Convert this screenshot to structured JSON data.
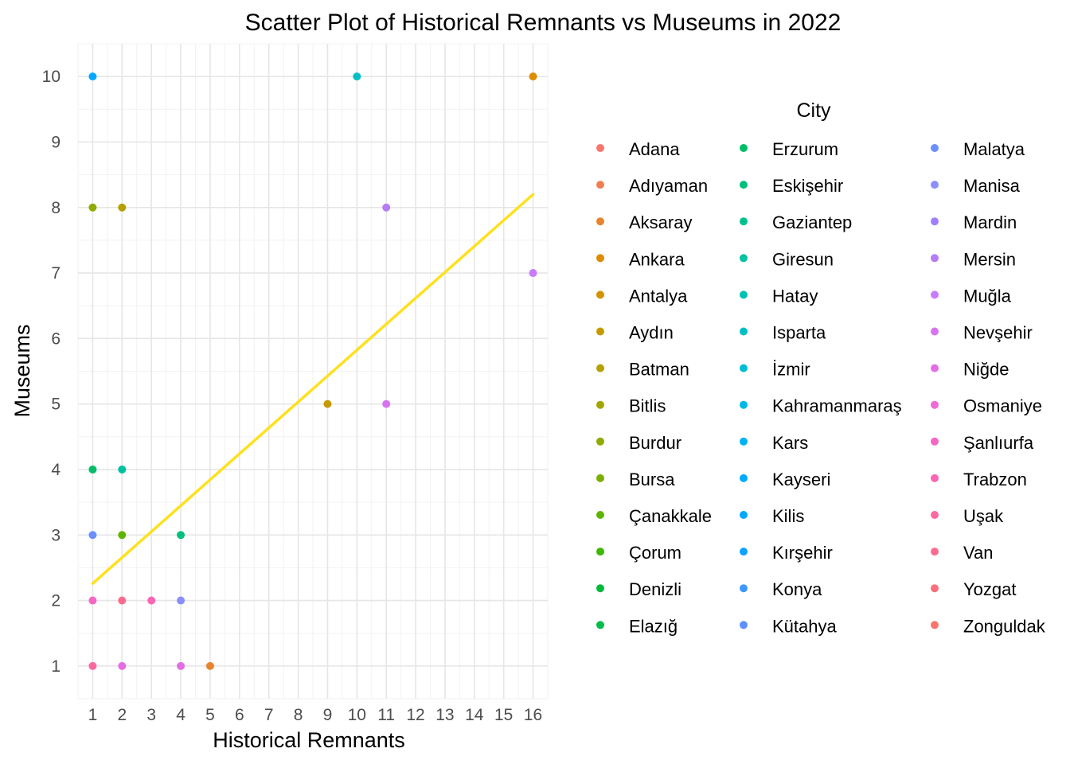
{
  "chart_data": {
    "type": "scatter",
    "title": "Scatter Plot of Historical Remnants vs Museums in 2022",
    "xlabel": "Historical Remnants",
    "ylabel": "Museums",
    "xlim": [
      0.5,
      16.5
    ],
    "ylim": [
      0.5,
      10.5
    ],
    "x_ticks": [
      1,
      2,
      3,
      4,
      5,
      6,
      7,
      8,
      9,
      10,
      11,
      12,
      13,
      14,
      15,
      16
    ],
    "y_ticks": [
      1,
      2,
      3,
      4,
      5,
      6,
      7,
      8,
      9,
      10
    ],
    "grid": true,
    "legend": {
      "title": "City",
      "placement": "right",
      "columns": 3
    },
    "trend_line": {
      "type": "linear fit",
      "color": "#FFE01E",
      "x": [
        1,
        16
      ],
      "y": [
        2.26,
        8.2
      ]
    },
    "series": [
      {
        "name": "Adana",
        "color": "#F8766D",
        "points": []
      },
      {
        "name": "Adıyaman",
        "color": "#F17D53",
        "points": []
      },
      {
        "name": "Aksaray",
        "color": "#E7842E",
        "points": [
          [
            5,
            1
          ]
        ]
      },
      {
        "name": "Ankara",
        "color": "#DE8C00",
        "points": [
          [
            16,
            10
          ]
        ]
      },
      {
        "name": "Antalya",
        "color": "#D39200",
        "points": []
      },
      {
        "name": "Aydın",
        "color": "#C59900",
        "points": [
          [
            9,
            5
          ]
        ]
      },
      {
        "name": "Batman",
        "color": "#B69F00",
        "points": [
          [
            2,
            8
          ]
        ]
      },
      {
        "name": "Bitlis",
        "color": "#A3A500",
        "points": []
      },
      {
        "name": "Burdur",
        "color": "#8EAB00",
        "points": [
          [
            1,
            8
          ]
        ]
      },
      {
        "name": "Bursa",
        "color": "#7AAF00",
        "points": []
      },
      {
        "name": "Çanakkale",
        "color": "#5FB400",
        "points": [
          [
            2,
            3
          ]
        ]
      },
      {
        "name": "Çorum",
        "color": "#3EB700",
        "points": []
      },
      {
        "name": "Denizli",
        "color": "#00BA38",
        "points": []
      },
      {
        "name": "Elazığ",
        "color": "#00BC4E",
        "points": []
      },
      {
        "name": "Erzurum",
        "color": "#00BE67",
        "points": [
          [
            1,
            4
          ]
        ]
      },
      {
        "name": "Eskişehir",
        "color": "#00C07B",
        "points": [
          [
            4,
            3
          ]
        ]
      },
      {
        "name": "Gaziantep",
        "color": "#00C18E",
        "points": []
      },
      {
        "name": "Giresun",
        "color": "#00C1A2",
        "points": [
          [
            2,
            4
          ]
        ]
      },
      {
        "name": "Hatay",
        "color": "#00C0B4",
        "points": []
      },
      {
        "name": "Isparta",
        "color": "#00BFC4",
        "points": [
          [
            10,
            10
          ]
        ]
      },
      {
        "name": "İzmir",
        "color": "#00BCD4",
        "points": []
      },
      {
        "name": "Kahramanmaraş",
        "color": "#00B8E5",
        "points": []
      },
      {
        "name": "Kars",
        "color": "#00B2F2",
        "points": []
      },
      {
        "name": "Kayseri",
        "color": "#00ABFD",
        "points": []
      },
      {
        "name": "Kilis",
        "color": "#00A9FF",
        "points": [
          [
            1,
            10
          ]
        ]
      },
      {
        "name": "Kırşehir",
        "color": "#0FA2FF",
        "points": []
      },
      {
        "name": "Konya",
        "color": "#3D99FF",
        "points": []
      },
      {
        "name": "Kütahya",
        "color": "#5E90FF",
        "points": []
      },
      {
        "name": "Malatya",
        "color": "#6C8FFF",
        "points": [
          [
            1,
            3
          ]
        ]
      },
      {
        "name": "Manisa",
        "color": "#8B8EFF",
        "points": [
          [
            4,
            2
          ]
        ]
      },
      {
        "name": "Mardin",
        "color": "#A180FF",
        "points": []
      },
      {
        "name": "Mersin",
        "color": "#B57CF5",
        "points": [
          [
            11,
            8
          ]
        ]
      },
      {
        "name": "Muğla",
        "color": "#C77CFF",
        "points": [
          [
            16,
            7
          ]
        ]
      },
      {
        "name": "Nevşehir",
        "color": "#D773F0",
        "points": [
          [
            11,
            5
          ]
        ]
      },
      {
        "name": "Niğde",
        "color": "#E36EE4",
        "points": [
          [
            2,
            1
          ],
          [
            4,
            1
          ]
        ]
      },
      {
        "name": "Osmaniye",
        "color": "#EE6BD6",
        "points": []
      },
      {
        "name": "Şanlıurfa",
        "color": "#F567C5",
        "points": [
          [
            1,
            2
          ]
        ]
      },
      {
        "name": "Trabzon",
        "color": "#FA66B3",
        "points": [
          [
            3,
            2
          ]
        ]
      },
      {
        "name": "Uşak",
        "color": "#FD68A0",
        "points": [
          [
            1,
            1
          ]
        ]
      },
      {
        "name": "Van",
        "color": "#FD6C8E",
        "points": [
          [
            2,
            2
          ]
        ]
      },
      {
        "name": "Yozgat",
        "color": "#FB6F7C",
        "points": []
      },
      {
        "name": "Zonguldak",
        "color": "#F8766D",
        "points": []
      }
    ]
  }
}
